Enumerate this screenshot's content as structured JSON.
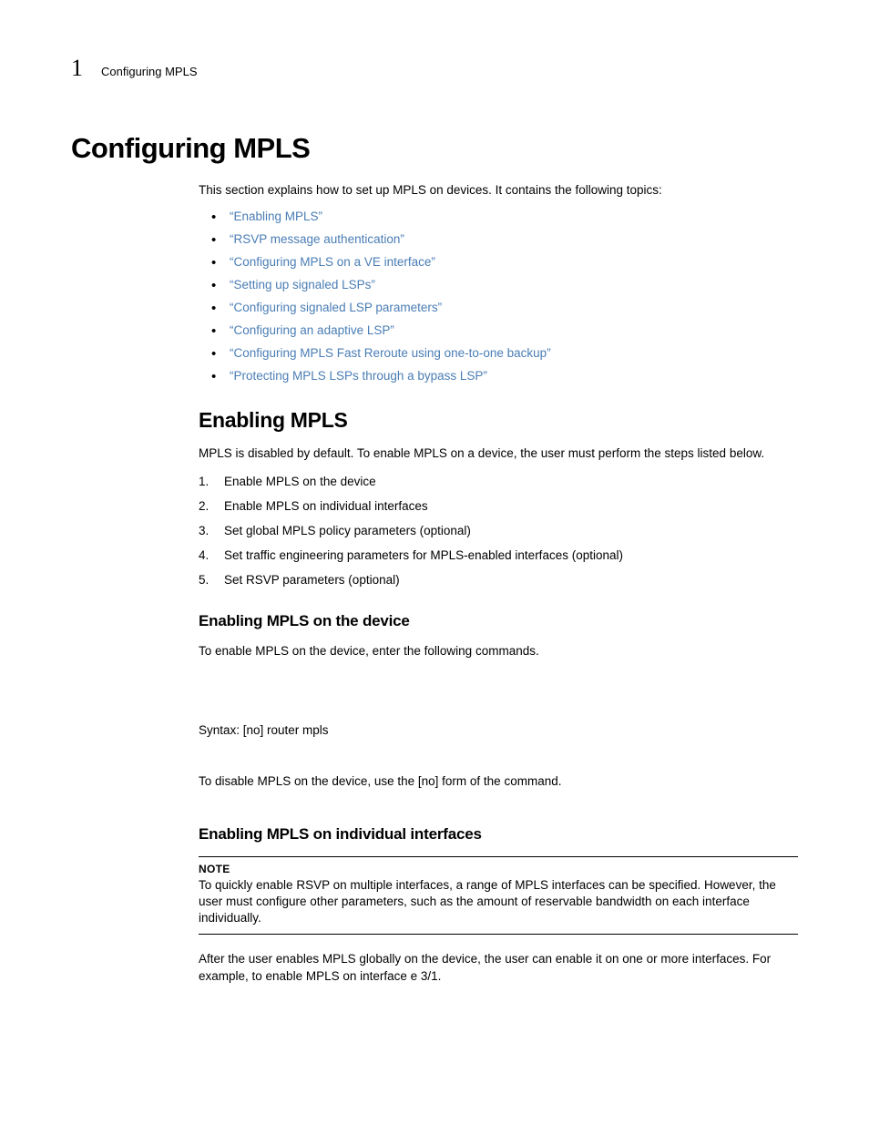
{
  "header": {
    "chapter_number": "1",
    "chapter_label": "Configuring MPLS"
  },
  "title": "Configuring MPLS",
  "intro": "This section explains how to set up MPLS on devices. It contains the following topics:",
  "topics": [
    "“Enabling MPLS”",
    "“RSVP message authentication”",
    "“Configuring MPLS on a VE interface”",
    "“Setting up signaled LSPs”",
    "“Configuring signaled LSP parameters”",
    "“Configuring an adaptive LSP”",
    "“Configuring MPLS Fast Reroute using one-to-one backup”",
    "“Protecting MPLS LSPs through a bypass LSP”"
  ],
  "enabling": {
    "heading": "Enabling MPLS",
    "para": "MPLS is disabled by default. To enable MPLS on a device, the user must perform the steps listed below.",
    "steps": [
      "Enable MPLS on the device",
      "Enable MPLS on individual interfaces",
      "Set global MPLS policy parameters (optional)",
      "Set traffic engineering parameters for MPLS-enabled interfaces (optional)",
      "Set RSVP parameters (optional)"
    ]
  },
  "on_device": {
    "heading": "Enabling MPLS on the device",
    "para1": "To enable MPLS on the device, enter the following commands.",
    "syntax": "Syntax:  [no] router mpls",
    "para2": "To disable MPLS on the device, use the [no] form of the command."
  },
  "on_interfaces": {
    "heading": "Enabling MPLS on individual interfaces",
    "note_label": "NOTE",
    "note_text": "To quickly enable RSVP on multiple interfaces, a range of MPLS interfaces can be specified. However, the user must configure other parameters, such as the amount of reservable bandwidth on each interface individually.",
    "para": "After the user enables MPLS globally on the device, the user can enable it on one or more interfaces. For example, to enable MPLS on interface e 3/1."
  },
  "colors": {
    "link": "#4a7db5",
    "text": "#000000",
    "background": "#ffffff"
  }
}
